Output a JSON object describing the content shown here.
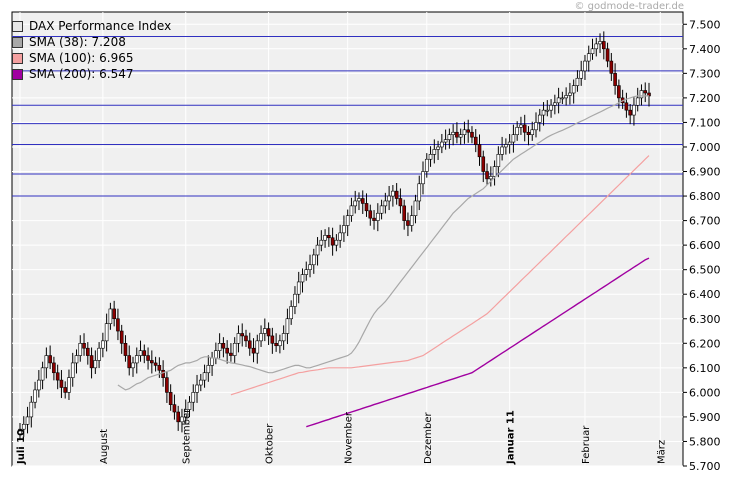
{
  "credit": "© godmode-trader.de",
  "chart_data": {
    "type": "candlestick",
    "title": "DAX Performance Index",
    "legend": [
      {
        "label": "DAX Performance Index",
        "color": "#e6e6e6"
      },
      {
        "label": "SMA (38): 7.208",
        "color": "#a8a8a8"
      },
      {
        "label": "SMA (100): 6.965",
        "color": "#f4a0a0"
      },
      {
        "label": "SMA (200): 6.547",
        "color": "#a000a0"
      }
    ],
    "ylim": [
      5700,
      7550
    ],
    "y_ticks": [
      "5.700",
      "5.800",
      "5.900",
      "6.000",
      "6.100",
      "6.200",
      "6.300",
      "6.400",
      "6.500",
      "6.600",
      "6.700",
      "6.800",
      "6.900",
      "7.000",
      "7.100",
      "7.200",
      "7.300",
      "7.400",
      "7.500"
    ],
    "x_labels": [
      {
        "label": "Juli 10",
        "bold": true,
        "i": 0
      },
      {
        "label": "August",
        "bold": false,
        "i": 22
      },
      {
        "label": "September",
        "bold": false,
        "i": 44
      },
      {
        "label": "Oktober",
        "bold": false,
        "i": 66
      },
      {
        "label": "November",
        "bold": false,
        "i": 87
      },
      {
        "label": "Dezember",
        "bold": false,
        "i": 108
      },
      {
        "label": "Januar 11",
        "bold": true,
        "i": 130
      },
      {
        "label": "Februar",
        "bold": false,
        "i": 150
      },
      {
        "label": "März",
        "bold": false,
        "i": 170
      }
    ],
    "horizontal_lines": [
      7450,
      7310,
      7170,
      7095,
      7010,
      6890,
      6800
    ],
    "close": [
      5850,
      5870,
      5900,
      5960,
      6010,
      6050,
      6100,
      6150,
      6120,
      6080,
      6050,
      6020,
      6000,
      6060,
      6120,
      6150,
      6200,
      6180,
      6150,
      6100,
      6130,
      6180,
      6210,
      6280,
      6340,
      6300,
      6250,
      6200,
      6150,
      6100,
      6120,
      6150,
      6170,
      6150,
      6130,
      6120,
      6110,
      6090,
      6060,
      6000,
      5950,
      5920,
      5880,
      5900,
      5930,
      5960,
      6000,
      6030,
      6050,
      6080,
      6110,
      6140,
      6170,
      6200,
      6180,
      6160,
      6150,
      6200,
      6240,
      6230,
      6210,
      6180,
      6160,
      6210,
      6240,
      6260,
      6230,
      6200,
      6190,
      6210,
      6240,
      6300,
      6350,
      6400,
      6450,
      6480,
      6500,
      6520,
      6560,
      6600,
      6620,
      6640,
      6630,
      6600,
      6620,
      6650,
      6680,
      6720,
      6760,
      6780,
      6790,
      6770,
      6740,
      6710,
      6700,
      6730,
      6760,
      6780,
      6800,
      6820,
      6790,
      6760,
      6700,
      6680,
      6720,
      6780,
      6850,
      6900,
      6950,
      6970,
      6990,
      7000,
      7020,
      7030,
      7050,
      7060,
      7040,
      7050,
      7070,
      7060,
      7040,
      7010,
      6960,
      6900,
      6870,
      6880,
      6920,
      6970,
      7000,
      7010,
      7020,
      7050,
      7080,
      7090,
      7060,
      7050,
      7070,
      7100,
      7130,
      7150,
      7150,
      7170,
      7180,
      7200,
      7200,
      7210,
      7220,
      7250,
      7280,
      7310,
      7350,
      7380,
      7400,
      7420,
      7430,
      7400,
      7350,
      7300,
      7250,
      7200,
      7180,
      7150,
      7130,
      7170,
      7200,
      7230,
      7220,
      7208
    ],
    "sma38": [
      6030,
      6020,
      6010,
      6015,
      6025,
      6035,
      6040,
      6050,
      6060,
      6065,
      6070,
      6075,
      6080,
      6085,
      6090,
      6100,
      6110,
      6115,
      6120,
      6120,
      6125,
      6130,
      6140,
      6145,
      6145,
      6140,
      6140,
      6135,
      6130,
      6125,
      6120,
      6118,
      6115,
      6112,
      6108,
      6105,
      6100,
      6095,
      6090,
      6085,
      6080,
      6080,
      6085,
      6090,
      6095,
      6100,
      6105,
      6110,
      6110,
      6105,
      6100,
      6100,
      6105,
      6110,
      6115,
      6120,
      6125,
      6130,
      6135,
      6140,
      6145,
      6150,
      6160,
      6180,
      6205,
      6235,
      6265,
      6295,
      6320,
      6340,
      6355,
      6370,
      6390,
      6410,
      6430,
      6450,
      6470,
      6490,
      6510,
      6530,
      6550,
      6570,
      6590,
      6610,
      6630,
      6650,
      6670,
      6690,
      6710,
      6730,
      6745,
      6760,
      6775,
      6790,
      6800,
      6810,
      6820,
      6830,
      6845,
      6860,
      6875,
      6890,
      6905,
      6920,
      6935,
      6950,
      6960,
      6970,
      6980,
      6990,
      7000,
      7010,
      7020,
      7030,
      7040,
      7048,
      7055,
      7062,
      7068,
      7075,
      7082,
      7090,
      7098,
      7105,
      7112,
      7120,
      7128,
      7135,
      7142,
      7150,
      7158,
      7165,
      7172,
      7180,
      7188,
      7195,
      7200,
      7205,
      7208,
      7208,
      7208,
      7208
    ],
    "sma100": [
      5990,
      5995,
      6000,
      6005,
      6010,
      6015,
      6020,
      6025,
      6030,
      6035,
      6040,
      6045,
      6050,
      6055,
      6060,
      6065,
      6070,
      6075,
      6080,
      6082,
      6085,
      6088,
      6090,
      6092,
      6095,
      6098,
      6100,
      6100,
      6100,
      6100,
      6100,
      6100,
      6100,
      6102,
      6104,
      6106,
      6108,
      6110,
      6112,
      6114,
      6116,
      6118,
      6120,
      6122,
      6124,
      6126,
      6128,
      6130,
      6135,
      6140,
      6145,
      6150,
      6160,
      6170,
      6180,
      6190,
      6200,
      6210,
      6220,
      6230,
      6240,
      6250,
      6260,
      6270,
      6280,
      6290,
      6300,
      6310,
      6320,
      6335,
      6350,
      6365,
      6380,
      6395,
      6410,
      6425,
      6440,
      6455,
      6470,
      6485,
      6500,
      6515,
      6530,
      6545,
      6560,
      6575,
      6590,
      6605,
      6620,
      6635,
      6650,
      6665,
      6680,
      6695,
      6710,
      6725,
      6740,
      6755,
      6770,
      6785,
      6800,
      6815,
      6830,
      6845,
      6860,
      6875,
      6890,
      6905,
      6920,
      6935,
      6950,
      6965
    ],
    "sma200": [
      5860,
      5865,
      5870,
      5875,
      5880,
      5885,
      5890,
      5895,
      5900,
      5905,
      5910,
      5915,
      5920,
      5925,
      5930,
      5935,
      5940,
      5945,
      5950,
      5955,
      5960,
      5965,
      5970,
      5975,
      5980,
      5985,
      5990,
      5995,
      6000,
      6005,
      6010,
      6015,
      6020,
      6025,
      6030,
      6035,
      6040,
      6045,
      6050,
      6055,
      6060,
      6065,
      6070,
      6075,
      6080,
      6090,
      6100,
      6110,
      6120,
      6130,
      6140,
      6150,
      6160,
      6170,
      6180,
      6190,
      6200,
      6210,
      6220,
      6230,
      6240,
      6250,
      6260,
      6270,
      6280,
      6290,
      6300,
      6310,
      6320,
      6330,
      6340,
      6350,
      6360,
      6370,
      6380,
      6390,
      6400,
      6410,
      6420,
      6430,
      6440,
      6450,
      6460,
      6470,
      6480,
      6490,
      6500,
      6510,
      6520,
      6530,
      6540,
      6547
    ]
  }
}
